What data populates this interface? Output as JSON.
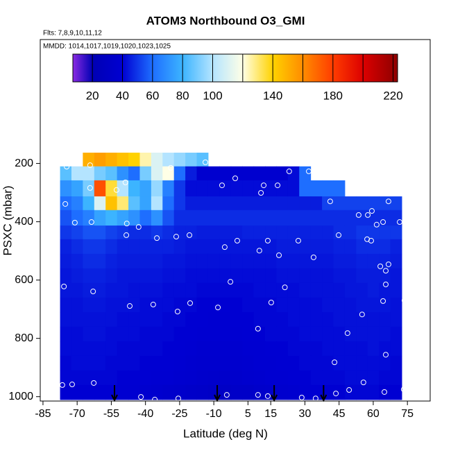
{
  "chart_data": {
    "type": "heatmap",
    "title": "ATOM3 Northbound O3_GMI",
    "subtitle": "Flts: 7,8,9,10,11,12",
    "annotation": "MMDD: 1014,1017,1019,1020,1023,1025",
    "x_label": "Latitude (deg N)",
    "y_label": "PSXC (mbar)",
    "xlim": [
      -86.2,
      85
    ],
    "xticks": [
      -85,
      -70,
      -55,
      -40,
      -25,
      -10,
      5,
      15,
      30,
      45,
      60,
      75
    ],
    "ylim": [
      1015,
      -225
    ],
    "yticks": [
      200,
      400,
      600,
      800,
      1000
    ],
    "x_edges": [
      -77.5,
      -72.5,
      -67.5,
      -62.5,
      -57.5,
      -52.5,
      -47.5,
      -42.5,
      -37.5,
      -32.5,
      -27.5,
      -22.5,
      -17.5,
      -12.5,
      -7.5,
      -2.5,
      2.5,
      7.5,
      12.5,
      17.5,
      22.5,
      27.5,
      32.5,
      37.5,
      42.5,
      47.5,
      52.5,
      57.5,
      62.5,
      67.5,
      72.5
    ],
    "y_edges": [
      163,
      210,
      258,
      313,
      360,
      413,
      460,
      510,
      560,
      610,
      660,
      710,
      760,
      810,
      860,
      910,
      960,
      1010
    ],
    "values": [
      [
        null,
        null,
        150,
        155,
        150,
        145,
        140,
        125,
        110,
        100,
        95,
        90,
        85,
        null,
        null,
        null,
        null,
        null,
        null,
        null,
        null,
        null,
        null,
        null,
        null,
        null,
        null,
        null,
        null,
        null
      ],
      [
        85,
        100,
        100,
        90,
        85,
        70,
        60,
        90,
        110,
        120,
        60,
        45,
        38,
        38,
        38,
        38,
        38,
        38,
        38,
        38,
        42,
        60,
        null,
        null,
        null,
        null,
        null,
        null,
        null,
        null
      ],
      [
        70,
        75,
        90,
        175,
        135,
        100,
        80,
        75,
        95,
        65,
        50,
        42,
        42,
        42,
        42,
        42,
        42,
        42,
        42,
        42,
        42,
        60,
        60,
        60,
        60,
        null,
        null,
        null,
        null,
        null
      ],
      [
        60,
        65,
        80,
        110,
        145,
        130,
        85,
        75,
        100,
        60,
        50,
        45,
        45,
        45,
        45,
        45,
        45,
        45,
        45,
        45,
        45,
        45,
        45,
        52,
        52,
        52,
        52,
        52,
        52,
        52
      ],
      [
        55,
        60,
        65,
        75,
        80,
        75,
        70,
        60,
        70,
        55,
        48,
        48,
        48,
        48,
        48,
        48,
        48,
        48,
        48,
        48,
        48,
        48,
        48,
        48,
        48,
        48,
        48,
        48,
        48,
        48
      ],
      [
        50,
        52,
        55,
        55,
        52,
        50,
        48,
        48,
        50,
        48,
        46,
        46,
        45,
        45,
        45,
        45,
        46,
        46,
        46,
        46,
        46,
        46,
        46,
        46,
        48,
        48,
        50,
        50,
        50,
        50
      ],
      [
        46,
        48,
        50,
        50,
        48,
        46,
        46,
        46,
        46,
        46,
        45,
        44,
        44,
        44,
        44,
        44,
        44,
        44,
        44,
        45,
        45,
        45,
        45,
        45,
        46,
        46,
        48,
        48,
        48,
        46
      ],
      [
        45,
        46,
        48,
        48,
        46,
        45,
        45,
        45,
        45,
        44,
        44,
        43,
        43,
        43,
        43,
        43,
        43,
        43,
        43,
        44,
        44,
        44,
        44,
        44,
        45,
        45,
        46,
        46,
        46,
        45
      ],
      [
        44,
        45,
        46,
        46,
        45,
        44,
        44,
        44,
        44,
        43,
        43,
        42,
        42,
        42,
        42,
        42,
        42,
        42,
        42,
        43,
        43,
        43,
        43,
        43,
        44,
        44,
        45,
        45,
        45,
        44
      ],
      [
        44,
        44,
        45,
        45,
        44,
        44,
        43,
        43,
        43,
        42,
        42,
        42,
        41,
        41,
        41,
        41,
        41,
        42,
        42,
        42,
        42,
        43,
        43,
        43,
        43,
        44,
        44,
        45,
        44,
        44
      ],
      [
        43,
        43,
        44,
        44,
        43,
        43,
        43,
        42,
        42,
        42,
        41,
        41,
        40,
        40,
        40,
        40,
        41,
        41,
        41,
        42,
        42,
        42,
        42,
        43,
        43,
        43,
        44,
        44,
        44,
        43
      ],
      [
        43,
        43,
        43,
        43,
        43,
        42,
        42,
        42,
        42,
        41,
        41,
        40,
        40,
        39,
        39,
        40,
        40,
        41,
        41,
        41,
        42,
        42,
        42,
        42,
        43,
        43,
        43,
        43,
        43,
        43
      ],
      [
        42,
        42,
        43,
        43,
        42,
        42,
        42,
        41,
        41,
        41,
        40,
        40,
        39,
        39,
        39,
        39,
        40,
        40,
        41,
        41,
        41,
        42,
        42,
        42,
        42,
        43,
        43,
        43,
        43,
        42
      ],
      [
        42,
        42,
        42,
        42,
        42,
        41,
        41,
        41,
        41,
        40,
        40,
        39,
        38,
        38,
        38,
        38,
        39,
        39,
        40,
        40,
        41,
        41,
        41,
        42,
        42,
        42,
        42,
        43,
        42,
        42
      ],
      [
        41,
        42,
        42,
        42,
        41,
        41,
        41,
        40,
        40,
        40,
        39,
        38,
        37,
        37,
        37,
        37,
        38,
        39,
        39,
        40,
        40,
        41,
        41,
        41,
        42,
        42,
        42,
        42,
        42,
        41
      ],
      [
        41,
        41,
        41,
        41,
        41,
        40,
        40,
        40,
        39,
        39,
        38,
        37,
        36,
        35,
        35,
        36,
        37,
        38,
        39,
        39,
        40,
        40,
        41,
        41,
        41,
        42,
        42,
        42,
        41,
        41
      ],
      [
        40,
        40,
        40,
        40,
        40,
        39,
        39,
        38,
        37,
        36,
        35,
        34,
        33,
        32,
        32,
        33,
        33,
        35,
        36,
        37,
        38,
        39,
        40,
        40,
        40,
        41,
        41,
        41,
        40,
        40
      ]
    ],
    "colormap": {
      "values": [
        7,
        20,
        40,
        60,
        80,
        100,
        120,
        140,
        160,
        180,
        200,
        223
      ],
      "colors": [
        "#8a2be2",
        "#0000b4",
        "#0000d2",
        "#1e6eff",
        "#3cb4ff",
        "#b4e4ff",
        "#ffffe6",
        "#ffd200",
        "#ff8c00",
        "#ff3c00",
        "#dc0000",
        "#8c0000"
      ]
    },
    "clim": [
      7,
      223
    ],
    "cbar_ticks": [
      20,
      40,
      60,
      80,
      100,
      140,
      180,
      220
    ],
    "cbar_lines": [
      20,
      40,
      60,
      80,
      100,
      120,
      140,
      160,
      180,
      200,
      220
    ],
    "points": {
      "x": [
        -74.6,
        -64.3,
        -28.9,
        -22.2,
        -13.7,
        23.1,
        31.7,
        -0.6,
        -6.4,
        11.9,
        18.0,
        10.7,
        -64.3,
        -52.7,
        -48.8,
        -75.2,
        41.1,
        -71.0,
        -63.7,
        -48.2,
        -43.0,
        53.6,
        57.6,
        59.4,
        64.3,
        61.5,
        66.7,
        71.6,
        -48.4,
        -35.0,
        -26.5,
        -20.7,
        0.3,
        13.7,
        27.1,
        44.8,
        57.3,
        59.1,
        -5.2,
        10.0,
        18.6,
        33.8,
        63.1,
        66.7,
        65.5,
        -75.8,
        -63.0,
        -2.7,
        21.2,
        65.5,
        -46.9,
        -36.6,
        -20.4,
        -25.9,
        -8.2,
        15.2,
        64.3,
        73.7,
        55.1,
        48.7,
        9.4,
        43.0,
        65.5,
        -76.5,
        -72.2,
        -62.7,
        55.7,
        64.9,
        73.4,
        -42.0,
        -35.9,
        -25.6,
        -4.3,
        9.4,
        13.7,
        28.6,
        34.7,
        43.6,
        49.4
      ],
      "y": [
        211,
        206,
        215,
        151,
        196,
        227,
        227,
        251,
        275,
        275,
        275,
        301,
        284,
        291,
        265,
        339,
        330,
        403,
        401,
        406,
        418,
        377,
        377,
        363,
        401,
        410,
        330,
        401,
        446,
        456,
        451,
        446,
        465,
        465,
        465,
        446,
        460,
        465,
        487,
        499,
        515,
        522,
        553,
        546,
        568,
        622,
        639,
        606,
        625,
        615,
        689,
        684,
        679,
        708,
        694,
        677,
        672,
        670,
        718,
        782,
        767,
        882,
        856,
        960,
        958,
        953,
        951,
        984,
        975,
        1001,
        1010,
        1006,
        994,
        994,
        998,
        1003,
        1006,
        989,
        977
      ]
    },
    "markers": [
      -53.6,
      -8.5,
      16.5,
      38.2
    ]
  }
}
